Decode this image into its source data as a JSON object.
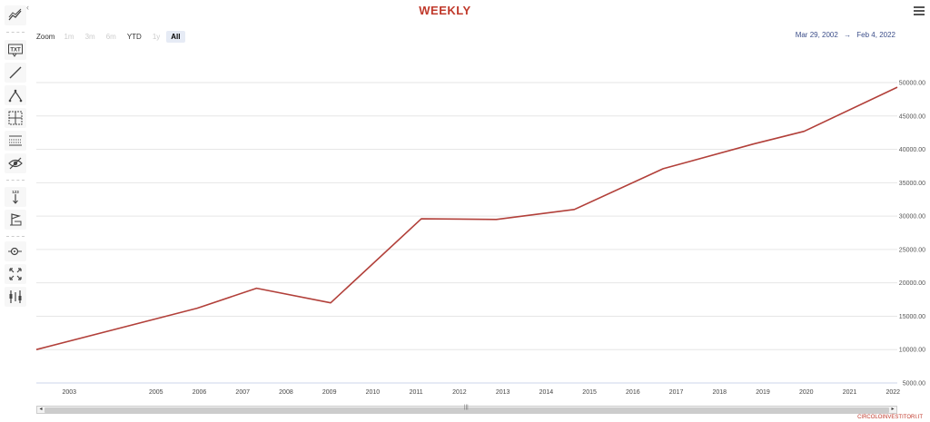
{
  "title": "WEEKLY",
  "zoom": {
    "label": "Zoom",
    "buttons": [
      {
        "label": "1m",
        "state": "disabled"
      },
      {
        "label": "3m",
        "state": "disabled"
      },
      {
        "label": "6m",
        "state": "disabled"
      },
      {
        "label": "YTD",
        "state": "enabled"
      },
      {
        "label": "1y",
        "state": "disabled"
      },
      {
        "label": "All",
        "state": "selected"
      }
    ]
  },
  "range": {
    "from": "Mar 29, 2002",
    "arrow": "→",
    "to": "Feb 4, 2022"
  },
  "toolbar": {
    "groups": [
      [
        "text-annotation-icon",
        "line-icon",
        "pitchfork-icon",
        "crosshair-icon",
        "grid-lines-icon",
        "hide-icon"
      ],
      [
        "measure-icon",
        "flag-icon"
      ],
      [
        "zoom-change-icon",
        "fullscreen-icon",
        "indicators-icon"
      ]
    ],
    "top_icon": "series-type-icon",
    "text_icon_label": "TXT",
    "measure_icon_label": "123"
  },
  "credits": "CIRCOLOINVESTITORI.IT",
  "colors": {
    "line": "#b2403a",
    "title": "#c0392b",
    "range": "#3d4f8a"
  },
  "chart_data": {
    "type": "line",
    "title": "WEEKLY",
    "xlabel": "",
    "ylabel": "",
    "grid": true,
    "ylim": [
      5000,
      50000
    ],
    "yticks": [
      5000,
      10000,
      15000,
      20000,
      25000,
      30000,
      35000,
      40000,
      45000,
      50000
    ],
    "ytick_labels": [
      "5000.00",
      "10000.00",
      "15000.00",
      "20000.00",
      "25000.00",
      "30000.00",
      "35000.00",
      "40000.00",
      "45000.00",
      "50000.00"
    ],
    "xlim": [
      2002.24,
      2022.1
    ],
    "xtick_labels": [
      "2003",
      "2005",
      "2006",
      "2007",
      "2008",
      "2009",
      "2010",
      "2011",
      "2012",
      "2013",
      "2014",
      "2015",
      "2016",
      "2017",
      "2018",
      "2019",
      "2020",
      "2021",
      "2022"
    ],
    "xtick_positions": [
      2003,
      2005,
      2006,
      2007,
      2008,
      2009,
      2010,
      2011,
      2012,
      2013,
      2014,
      2015,
      2016,
      2017,
      2018,
      2019,
      2020,
      2021,
      2022
    ],
    "series": [
      {
        "x": [
          2002.24,
          2005.95,
          2007.32,
          2009.03,
          2011.12,
          2012.85,
          2014.65,
          2016.7,
          2018.78,
          2019.95,
          2022.1
        ],
        "y": [
          10000,
          16200,
          19200,
          17000,
          29600,
          29500,
          31000,
          37100,
          40800,
          42700,
          49300
        ]
      }
    ]
  }
}
